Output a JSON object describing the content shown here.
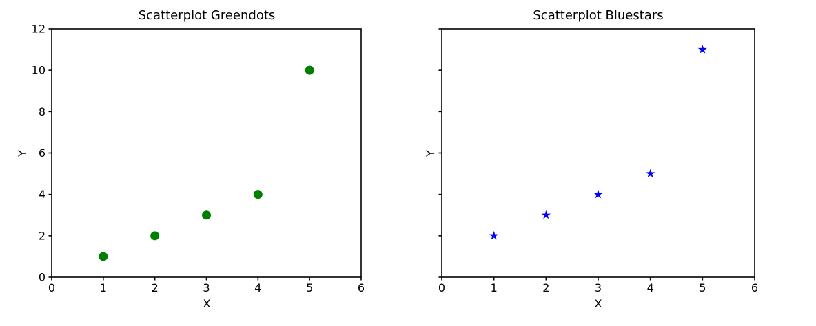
{
  "figure": {
    "background": "#ffffff",
    "text_color": "#000000",
    "spine_color": "#000000"
  },
  "chart_data": [
    {
      "type": "scatter",
      "title": "Scatterplot Greendots",
      "xlabel": "X",
      "ylabel": "Y",
      "xlim": [
        0,
        6
      ],
      "ylim": [
        0,
        12
      ],
      "xticks": [
        0,
        1,
        2,
        3,
        4,
        5,
        6
      ],
      "yticks": [
        0,
        2,
        4,
        6,
        8,
        10,
        12
      ],
      "show_ytick_labels": true,
      "grid": false,
      "legend": "none",
      "marker": "circle",
      "marker_color": "#008000",
      "x": [
        1,
        2,
        3,
        4,
        5
      ],
      "y": [
        1,
        2,
        3,
        4,
        10
      ]
    },
    {
      "type": "scatter",
      "title": "Scatterplot Bluestars",
      "xlabel": "X",
      "ylabel": "Y",
      "xlim": [
        0,
        6
      ],
      "ylim": [
        0,
        12
      ],
      "xticks": [
        0,
        1,
        2,
        3,
        4,
        5,
        6
      ],
      "yticks": [
        0,
        2,
        4,
        6,
        8,
        10,
        12
      ],
      "show_ytick_labels": false,
      "grid": false,
      "legend": "none",
      "marker": "star",
      "marker_color": "#0000ff",
      "x": [
        1,
        2,
        3,
        4,
        5
      ],
      "y": [
        2,
        3,
        4,
        5,
        11
      ]
    }
  ]
}
